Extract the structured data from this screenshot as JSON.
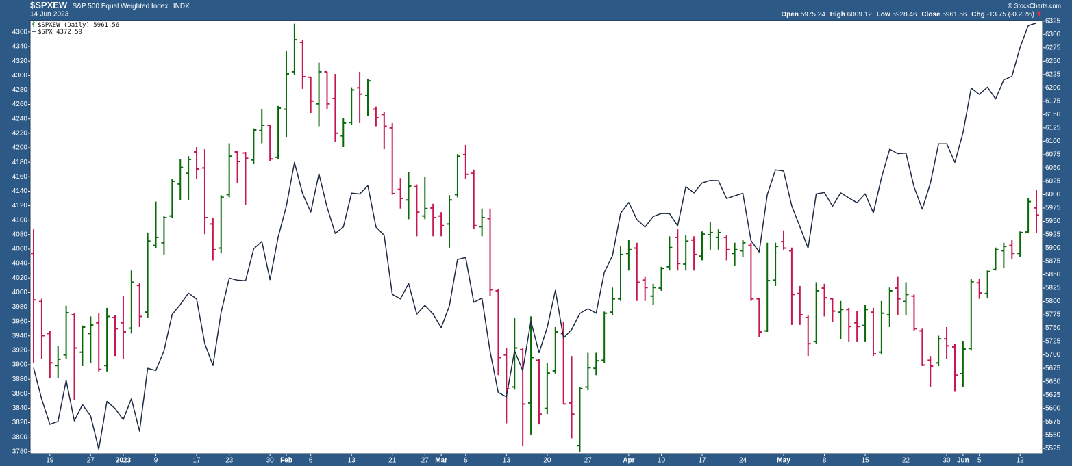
{
  "header": {
    "symbol": "$SPXEW",
    "name": "S&P 500 Equal Weighted Index",
    "exchange": "INDX",
    "date": "14-Jun-2023",
    "watermark": "© StockCharts.com",
    "ohlc_labels": [
      "Open",
      "High",
      "Low",
      "Close",
      "Chg"
    ],
    "change": "-13.75 (-0.23%)"
  },
  "chart_data": {
    "type": "ohlc",
    "categories": [
      null,
      null,
      "19",
      null,
      null,
      null,
      null,
      "27",
      null,
      null,
      null,
      "2023",
      null,
      null,
      null,
      "9",
      null,
      null,
      null,
      null,
      "17",
      null,
      null,
      null,
      "23",
      null,
      null,
      null,
      null,
      "30",
      null,
      "Feb",
      null,
      null,
      "6",
      null,
      null,
      null,
      null,
      "13",
      null,
      null,
      null,
      null,
      "21",
      null,
      null,
      null,
      "27",
      null,
      "Mar",
      null,
      null,
      "6",
      null,
      null,
      null,
      null,
      "13",
      null,
      null,
      null,
      null,
      "20",
      null,
      null,
      null,
      null,
      "27",
      null,
      null,
      null,
      null,
      "Apr",
      null,
      null,
      null,
      "10",
      null,
      null,
      null,
      null,
      "17",
      null,
      null,
      null,
      null,
      "24",
      null,
      null,
      null,
      null,
      "May",
      null,
      null,
      null,
      null,
      "8",
      null,
      null,
      null,
      null,
      "15",
      null,
      null,
      null,
      null,
      "22",
      null,
      null,
      null,
      null,
      "30",
      null,
      "Jun",
      null,
      "5",
      null,
      null,
      null,
      null,
      "12",
      null,
      null
    ],
    "ylim": [
      3777,
      4376
    ],
    "yticks": [
      3780,
      3800,
      3820,
      3840,
      3860,
      3880,
      3900,
      3920,
      3940,
      3960,
      3980,
      4000,
      4020,
      4040,
      4060,
      4080,
      4100,
      4120,
      4140,
      4160,
      4180,
      4200,
      4220,
      4240,
      4260,
      4280,
      4300,
      4320,
      4340,
      4360
    ],
    "y2lim": [
      5515,
      6326
    ],
    "y2ticks": [
      5525,
      5550,
      5575,
      5600,
      5625,
      5650,
      5675,
      5700,
      5725,
      5750,
      5775,
      5800,
      5825,
      5850,
      5875,
      5900,
      5925,
      5950,
      5975,
      6000,
      6025,
      6050,
      6075,
      6100,
      6125,
      6150,
      6175,
      6200,
      6225,
      6250,
      6275,
      6300,
      6325
    ],
    "series": [
      {
        "name": "$SPXEW (Daily)",
        "type": "ohlc",
        "axis": "y2",
        "up_color": "#0a6a0a",
        "down_color": "#c8174d",
        "open": [
          5890,
          5800,
          5740,
          5680,
          5700,
          5775,
          5705,
          5740,
          5760,
          5680,
          5770,
          5760,
          5750,
          5830,
          5780,
          5905,
          5910,
          5960,
          6020,
          6040,
          6080,
          6050,
          5945,
          5900,
          6000,
          6080,
          6078,
          6065,
          6120,
          6130,
          6070,
          6160,
          6230,
          6285,
          6220,
          6170,
          6230,
          6180,
          6110,
          6135,
          6200,
          6185,
          6160,
          6150,
          6125,
          6010,
          5990,
          6015,
          5960,
          5975,
          5960,
          5945,
          6000,
          6075,
          6040,
          5940,
          5955,
          5820,
          5700,
          5640,
          5710,
          5610,
          5690,
          5600,
          5670,
          5740,
          5610,
          5530,
          5640,
          5675,
          5690,
          5780,
          5805,
          5890,
          5900,
          5840,
          5810,
          5825,
          5865,
          5920,
          5870,
          5915,
          5885,
          5925,
          5920,
          5920,
          5890,
          5895,
          5905,
          5805,
          5745,
          5840,
          5912,
          5895,
          5815,
          5770,
          5725,
          5825,
          5805,
          5780,
          5785,
          5760,
          5755,
          5780,
          5705,
          5775,
          5825,
          5800,
          5810,
          5745,
          5690,
          5685,
          5730,
          5715,
          5665,
          5712,
          5835,
          5815,
          5860,
          5895,
          5905,
          5890,
          5930,
          5975.24
        ],
        "high": [
          5935,
          5805,
          5745,
          5717,
          5792,
          5778,
          5755,
          5772,
          5778,
          5788,
          5775,
          5811,
          5858,
          5835,
          5929,
          5987,
          5961,
          6029,
          6067,
          6072,
          6089,
          6085,
          5957,
          5999,
          6096,
          6082,
          6080,
          6124,
          6160,
          6131,
          6166,
          6269,
          6320,
          6290,
          6221,
          6247,
          6230,
          6226,
          6144,
          6201,
          6230,
          6217,
          6165,
          6155,
          6134,
          6031,
          6042,
          6019,
          6034,
          5983,
          5967,
          5999,
          6076,
          6093,
          6047,
          5974,
          5974,
          5824,
          5713,
          5769,
          5713,
          5772,
          5692,
          5685,
          5752,
          5762,
          5698,
          5640,
          5704,
          5704,
          5781,
          5826,
          5903,
          5916,
          5910,
          5846,
          5833,
          5865,
          5922,
          5935,
          5925,
          5922,
          5931,
          5948,
          5935,
          5925,
          5910,
          5916,
          5910,
          5807,
          5910,
          5910,
          5933,
          5901,
          5829,
          5775,
          5836,
          5833,
          5807,
          5801,
          5788,
          5782,
          5794,
          5788,
          5801,
          5826,
          5846,
          5836,
          5813,
          5749,
          5698,
          5736,
          5752,
          5721,
          5726,
          5842,
          5842,
          5858,
          5901,
          5910,
          5916,
          5931,
          5993,
          6009.12
        ],
        "low": [
          5685,
          5692,
          5656,
          5657,
          5692,
          5615,
          5679,
          5685,
          5669,
          5669,
          5698,
          5693,
          5740,
          5752,
          5769,
          5900,
          5888,
          5957,
          5990,
          5990,
          6029,
          5926,
          5877,
          5890,
          5995,
          6022,
          5980,
          6057,
          6096,
          6063,
          6066,
          6108,
          6224,
          6198,
          6153,
          6128,
          6160,
          6098,
          6089,
          6131,
          6134,
          6147,
          6128,
          6085,
          6000,
          5974,
          5954,
          5922,
          5954,
          5922,
          5922,
          5901,
          5995,
          6029,
          5935,
          5922,
          5811,
          5662,
          5572,
          5635,
          5529,
          5551,
          5570,
          5589,
          5665,
          5608,
          5544,
          5519,
          5634,
          5662,
          5685,
          5775,
          5801,
          5858,
          5801,
          5801,
          5794,
          5820,
          5858,
          5858,
          5858,
          5858,
          5877,
          5897,
          5897,
          5877,
          5867,
          5884,
          5801,
          5734,
          5743,
          5829,
          5897,
          5756,
          5756,
          5698,
          5720,
          5772,
          5762,
          5730,
          5724,
          5724,
          5724,
          5698,
          5701,
          5752,
          5775,
          5775,
          5745,
          5679,
          5640,
          5679,
          5692,
          5631,
          5640,
          5708,
          5805,
          5807,
          5858,
          5862,
          5880,
          5884,
          5929,
          5928.46
        ],
        "close": [
          5803,
          5736,
          5685,
          5692,
          5779,
          5713,
          5752,
          5756,
          5673,
          5772,
          5749,
          5743,
          5836,
          5772,
          5913,
          5920,
          5957,
          6025,
          6051,
          6066,
          6048,
          5957,
          5897,
          5995,
          6072,
          6062,
          6068,
          6121,
          6130,
          6067,
          6162,
          6226,
          6290,
          6221,
          6175,
          6230,
          6170,
          6115,
          6134,
          6196,
          6188,
          6213,
          6144,
          6128,
          6002,
          5993,
          6016,
          5967,
          5974,
          5957,
          5942,
          5990,
          6072,
          6038,
          5942,
          5957,
          5822,
          5695,
          5637,
          5713,
          5608,
          5695,
          5589,
          5666,
          5743,
          5608,
          5589,
          5637,
          5676,
          5689,
          5778,
          5805,
          5888,
          5897,
          5836,
          5826,
          5826,
          5862,
          5901,
          5871,
          5913,
          5888,
          5926,
          5929,
          5929,
          5897,
          5897,
          5910,
          5805,
          5743,
          5839,
          5903,
          5900,
          5813,
          5775,
          5721,
          5820,
          5807,
          5782,
          5785,
          5753,
          5753,
          5785,
          5702,
          5778,
          5820,
          5805,
          5813,
          5749,
          5681,
          5679,
          5730,
          5717,
          5662,
          5711,
          5837,
          5816,
          5856,
          5897,
          5903,
          5890,
          5929,
          5987,
          5961.56
        ]
      },
      {
        "name": "$SPX",
        "type": "line",
        "axis": "y",
        "color": "#1c2a44",
        "values": [
          3895.75,
          3852.36,
          3817.66,
          3821.62,
          3878.44,
          3822.39,
          3844.82,
          3829.25,
          3783.22,
          3849.28,
          3839.5,
          3824.14,
          3852.97,
          3808.1,
          3895.08,
          3892.09,
          3919.25,
          3969.61,
          3983.17,
          3999.09,
          3990.97,
          3928.86,
          3898.85,
          3972.61,
          4019.81,
          4016.95,
          4016.22,
          4060.43,
          4070.56,
          4017.77,
          4076.6,
          4119.21,
          4179.76,
          4136.48,
          4111.08,
          4164,
          4117.86,
          4081.5,
          4090.46,
          4137.29,
          4136.13,
          4147.6,
          4090.41,
          4079.09,
          3997.34,
          3991.05,
          4012.32,
          3970.04,
          3982.24,
          3970.15,
          3951.39,
          3981.35,
          4045.64,
          4048.42,
          3986.37,
          3992.01,
          3918.32,
          3861.59,
          3855.76,
          3919.29,
          3891.93,
          3960.28,
          3916.64,
          3951.57,
          4002.87,
          3936.97,
          3948.72,
          3970.99,
          3977.53,
          3971.27,
          4027.81,
          4050.83,
          4109.31,
          4124.51,
          4100.6,
          4090.38,
          4105.02,
          4109.11,
          4108.94,
          4091.95,
          4146.22,
          4137.64,
          4151.32,
          4154.87,
          4154.52,
          4129.79,
          4133.52,
          4137.04,
          4071.63,
          4055.99,
          4135.35,
          4169.48,
          4167.87,
          4119.58,
          4090.75,
          4061.22,
          4136.25,
          4138.12,
          4119.17,
          4137.64,
          4130.62,
          4124.08,
          4136.28,
          4109.9,
          4158.77,
          4198.05,
          4191.98,
          4192.63,
          4145.58,
          4115.24,
          4151.28,
          4205.45,
          4205.52,
          4179.83,
          4221.02,
          4282.37,
          4273.79,
          4283.85,
          4267.52,
          4293.93,
          4298.86,
          4338.93,
          4369.01,
          4372.59
        ]
      }
    ]
  }
}
